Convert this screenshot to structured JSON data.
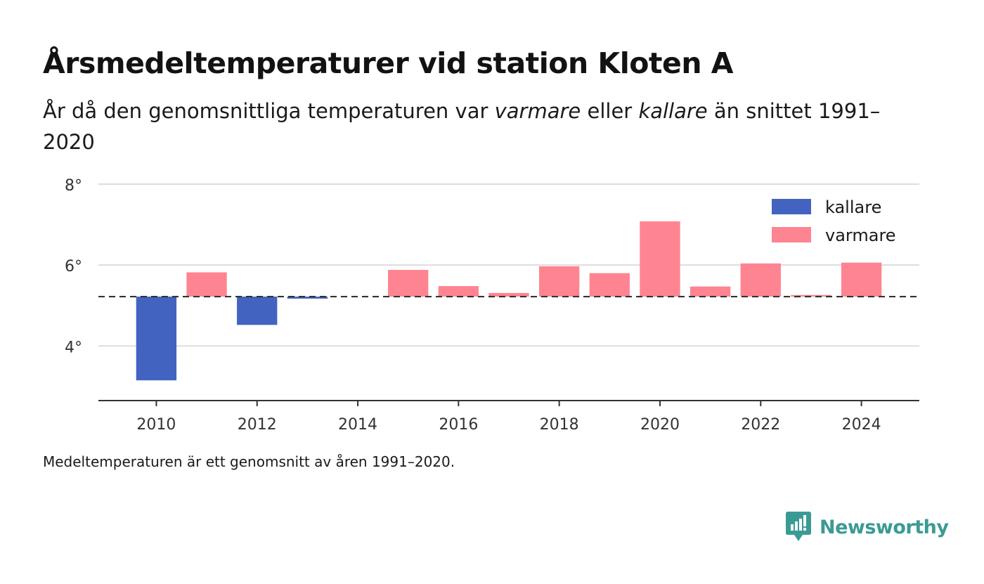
{
  "title": "Årsmedeltemperaturer vid station Kloten A",
  "subtitle": {
    "prefix": "År då den genomsnittliga temperaturen var ",
    "warm_word": "varmare",
    "middle": " eller ",
    "cold_word": "kallare",
    "suffix": " än snittet 1991–2020"
  },
  "footnote": "Medeltemperaturen är ett genomsnitt av åren 1991–2020.",
  "brand": {
    "name": "Newsworthy",
    "color": "#3a9b94"
  },
  "chart_data": {
    "type": "bar",
    "baseline": 5.22,
    "baseline_style": "dashed",
    "x": [
      2010,
      2011,
      2012,
      2013,
      2014,
      2015,
      2016,
      2017,
      2018,
      2019,
      2020,
      2021,
      2022,
      2023,
      2024
    ],
    "values": [
      3.15,
      5.82,
      4.52,
      5.17,
      null,
      5.88,
      5.48,
      5.31,
      5.97,
      5.8,
      7.08,
      5.47,
      6.04,
      5.26,
      6.06
    ],
    "xlim": [
      2008.85,
      2025.15
    ],
    "ylim": [
      2.65,
      8.0
    ],
    "x_ticks": [
      {
        "value": 2010,
        "label": "2010"
      },
      {
        "value": 2012,
        "label": "2012"
      },
      {
        "value": 2014,
        "label": "2014"
      },
      {
        "value": 2016,
        "label": "2016"
      },
      {
        "value": 2018,
        "label": "2018"
      },
      {
        "value": 2020,
        "label": "2020"
      },
      {
        "value": 2022,
        "label": "2022"
      },
      {
        "value": 2024,
        "label": "2024"
      }
    ],
    "y_ticks": [
      {
        "value": 4,
        "label": "4°"
      },
      {
        "value": 6,
        "label": "6°"
      },
      {
        "value": 8,
        "label": "8°"
      }
    ],
    "grid": true,
    "legend": {
      "placement": "top-right",
      "items": [
        {
          "key": "cold",
          "label": "kallare",
          "color": "#4264c0"
        },
        {
          "key": "warm",
          "label": "varmare",
          "color": "#ff8491"
        }
      ]
    },
    "colors": {
      "cold": "#4264c0",
      "warm": "#ff8491",
      "grid": "#dddddd",
      "axis": "#333333",
      "baseline": "#333333"
    }
  }
}
